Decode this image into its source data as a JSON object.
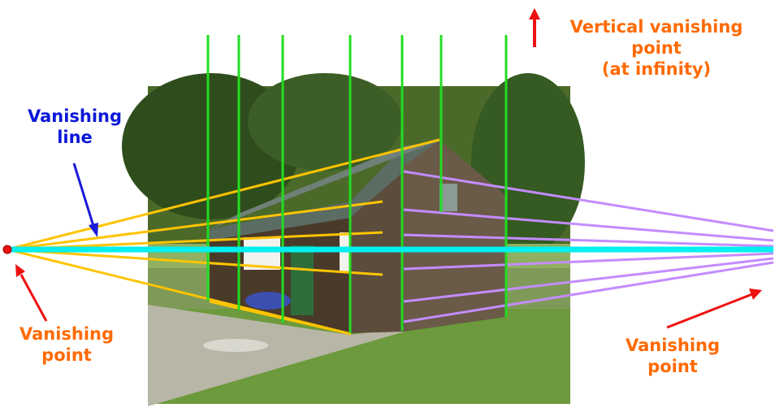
{
  "labels": {
    "vanishing_line": [
      "Vanishing",
      "line"
    ],
    "vanishing_point_left": [
      "Vanishing",
      "point"
    ],
    "vanishing_point_right": [
      "Vanishing",
      "point"
    ],
    "vertical_vp": [
      "Vertical vanishing",
      "point",
      "(at infinity)"
    ]
  },
  "colors": {
    "label_orange": "#ff6a00",
    "label_blue": "#0b18d8",
    "horizon": "#00f0f0",
    "left_lines": "#ffc400",
    "right_lines": "#c48cff",
    "verticals": "#22dd22",
    "arrow_red": "#ee1111",
    "arrow_blue": "#1a1ad8"
  }
}
